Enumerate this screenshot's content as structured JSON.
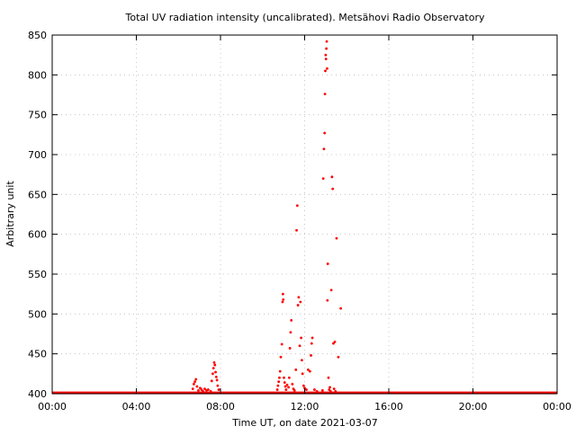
{
  "chart_data": {
    "type": "scatter",
    "title": "Total UV radiation intensity (uncalibrated). Metsähovi Radio Observatory",
    "xlabel": "Time UT, on date 2021-03-07",
    "ylabel": "Arbitrary unit",
    "xlim": [
      "00:00",
      "24:00"
    ],
    "ylim": [
      400,
      850
    ],
    "x_ticks": [
      "00:00",
      "04:00",
      "08:00",
      "12:00",
      "16:00",
      "20:00",
      "00:00"
    ],
    "y_ticks": [
      400,
      450,
      500,
      550,
      600,
      650,
      700,
      750,
      800,
      850
    ],
    "grid": true,
    "marker_color": "#ff0000",
    "baseline": {
      "value": 401,
      "from": "00:00",
      "to": "24:00"
    },
    "series": [
      {
        "points": [
          [
            "06:41",
            406
          ],
          [
            "06:44",
            412
          ],
          [
            "06:47",
            415
          ],
          [
            "06:50",
            418
          ],
          [
            "06:53",
            409
          ],
          [
            "06:57",
            404
          ],
          [
            "07:02",
            407
          ],
          [
            "07:06",
            405
          ],
          [
            "07:10",
            403
          ],
          [
            "07:15",
            406
          ],
          [
            "07:20",
            404
          ],
          [
            "07:25",
            405
          ],
          [
            "07:32",
            403
          ],
          [
            "07:35",
            416
          ],
          [
            "07:38",
            425
          ],
          [
            "07:40",
            432
          ],
          [
            "07:42",
            439
          ],
          [
            "07:44",
            436
          ],
          [
            "07:46",
            427
          ],
          [
            "07:48",
            421
          ],
          [
            "07:50",
            417
          ],
          [
            "07:52",
            410
          ],
          [
            "07:55",
            405
          ],
          [
            "10:42",
            405
          ],
          [
            "10:44",
            410
          ],
          [
            "10:46",
            415
          ],
          [
            "10:48",
            420
          ],
          [
            "10:50",
            428
          ],
          [
            "10:52",
            446
          ],
          [
            "10:55",
            462
          ],
          [
            "10:57",
            515
          ],
          [
            "10:58",
            525
          ],
          [
            "10:59",
            518
          ],
          [
            "11:01",
            420
          ],
          [
            "11:03",
            414
          ],
          [
            "11:05",
            409
          ],
          [
            "11:07",
            405
          ],
          [
            "11:10",
            411
          ],
          [
            "11:14",
            408
          ],
          [
            "11:16",
            420
          ],
          [
            "11:18",
            457
          ],
          [
            "11:20",
            477
          ],
          [
            "11:22",
            492
          ],
          [
            "11:25",
            412
          ],
          [
            "11:28",
            406
          ],
          [
            "11:31",
            404
          ],
          [
            "11:35",
            430
          ],
          [
            "11:37",
            605
          ],
          [
            "11:39",
            636
          ],
          [
            "11:41",
            511
          ],
          [
            "11:43",
            521
          ],
          [
            "11:46",
            460
          ],
          [
            "11:48",
            515
          ],
          [
            "11:50",
            470
          ],
          [
            "11:52",
            442
          ],
          [
            "11:54",
            425
          ],
          [
            "11:57",
            410
          ],
          [
            "12:00",
            407
          ],
          [
            "12:05",
            405
          ],
          [
            "12:10",
            430
          ],
          [
            "12:15",
            428
          ],
          [
            "12:18",
            448
          ],
          [
            "12:20",
            463
          ],
          [
            "12:22",
            470
          ],
          [
            "12:28",
            405
          ],
          [
            "12:35",
            403
          ],
          [
            "12:51",
            404
          ],
          [
            "12:53",
            670
          ],
          [
            "12:55",
            707
          ],
          [
            "12:57",
            727
          ],
          [
            "12:58",
            776
          ],
          [
            "12:59",
            805
          ],
          [
            "13:00",
            825
          ],
          [
            "13:01",
            820
          ],
          [
            "13:02",
            833
          ],
          [
            "13:03",
            842
          ],
          [
            "13:04",
            808
          ],
          [
            "13:05",
            517
          ],
          [
            "13:06",
            563
          ],
          [
            "13:08",
            420
          ],
          [
            "13:10",
            405
          ],
          [
            "13:12",
            408
          ],
          [
            "13:14",
            403
          ],
          [
            "13:16",
            530
          ],
          [
            "13:18",
            672
          ],
          [
            "13:20",
            657
          ],
          [
            "13:22",
            463
          ],
          [
            "13:24",
            406
          ],
          [
            "13:26",
            465
          ],
          [
            "13:28",
            403
          ],
          [
            "13:31",
            595
          ],
          [
            "13:36",
            446
          ],
          [
            "13:43",
            507
          ]
        ]
      }
    ]
  }
}
